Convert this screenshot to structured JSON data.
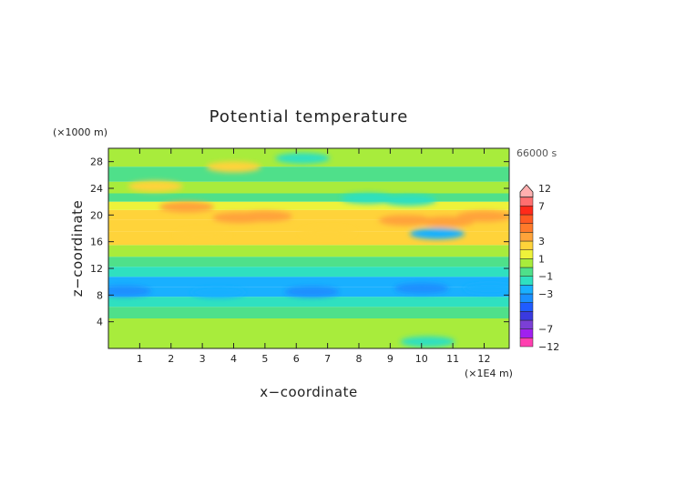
{
  "chart_data": {
    "type": "heatmap",
    "title": "Potential temperature",
    "xlabel": "x−coordinate",
    "ylabel": "z−coordinate",
    "x_unit": "(×1E4 m)",
    "y_unit": "(×1000 m)",
    "time_label": "66000 s",
    "xlim": [
      0,
      12.8
    ],
    "ylim": [
      0,
      30
    ],
    "x_ticks": [
      1,
      2,
      3,
      4,
      5,
      6,
      7,
      8,
      9,
      10,
      11,
      12
    ],
    "x_tick_labels": [
      "1",
      "2",
      "3",
      "4",
      "5",
      "6",
      "7",
      "8",
      "9",
      "10",
      "11",
      "12"
    ],
    "y_ticks": [
      4,
      8,
      12,
      16,
      20,
      24,
      28
    ],
    "y_tick_labels": [
      "4",
      "8",
      "12",
      "16",
      "20",
      "24",
      "28"
    ],
    "colorbar": {
      "bounds": [
        -12,
        -9,
        -7,
        -6,
        -5,
        -4,
        -3,
        -2,
        -1,
        0,
        1,
        2,
        3,
        4,
        5,
        6,
        7,
        9,
        12
      ],
      "colors": [
        "#ff3fb0",
        "#a020f0",
        "#7b3fd6",
        "#3a3ae0",
        "#1f5cff",
        "#1a8fff",
        "#19b0ff",
        "#2fe0c0",
        "#4fe08a",
        "#a8ec3c",
        "#eef23a",
        "#ffd33a",
        "#ffa33a",
        "#ff7a2a",
        "#ff5a22",
        "#ff2a1a",
        "#ff6f6f",
        "#ffb0b0"
      ],
      "labels": [
        "12",
        "7",
        "3",
        "1",
        "−1",
        "−3",
        "−7",
        "−12"
      ],
      "label_values": [
        12,
        7,
        3,
        1,
        -1,
        -3,
        -7,
        -12
      ]
    },
    "bands": [
      {
        "z_center": 1.0,
        "value": 0.4
      },
      {
        "z_center": 3.5,
        "value": 0.3
      },
      {
        "z_center": 5.5,
        "value": -0.8
      },
      {
        "z_center": 7.0,
        "value": -1.6
      },
      {
        "z_center": 8.5,
        "value": -2.6
      },
      {
        "z_center": 10.0,
        "value": -2.2
      },
      {
        "z_center": 11.5,
        "value": -1.5
      },
      {
        "z_center": 13.0,
        "value": -0.6
      },
      {
        "z_center": 14.5,
        "value": 0.5
      },
      {
        "z_center": 16.5,
        "value": 2.2
      },
      {
        "z_center": 18.5,
        "value": 2.4
      },
      {
        "z_center": 20.0,
        "value": 2.0
      },
      {
        "z_center": 21.5,
        "value": 1.2
      },
      {
        "z_center": 22.5,
        "value": -0.8
      },
      {
        "z_center": 24.0,
        "value": 0.3
      },
      {
        "z_center": 26.0,
        "value": -0.2
      },
      {
        "z_center": 28.5,
        "value": 0.2
      }
    ],
    "anomalies": [
      {
        "x": 1.5,
        "z": 24.3,
        "value": 2.4
      },
      {
        "x": 4.0,
        "z": 27.2,
        "value": 2.2
      },
      {
        "x": 2.5,
        "z": 21.2,
        "value": 3.3
      },
      {
        "x": 4.2,
        "z": 19.6,
        "value": 3.4
      },
      {
        "x": 5.0,
        "z": 19.8,
        "value": 3.2
      },
      {
        "x": 3.0,
        "z": 17.0,
        "value": 2.4
      },
      {
        "x": 7.0,
        "z": 17.4,
        "value": 2.6
      },
      {
        "x": 9.5,
        "z": 19.2,
        "value": 3.3
      },
      {
        "x": 10.8,
        "z": 19.0,
        "value": 3.6
      },
      {
        "x": 12.0,
        "z": 19.8,
        "value": 3.2
      },
      {
        "x": 8.3,
        "z": 22.5,
        "value": -1.6
      },
      {
        "x": 9.6,
        "z": 22.2,
        "value": -1.5
      },
      {
        "x": 10.5,
        "z": 17.2,
        "value": -2.4
      },
      {
        "x": 0.5,
        "z": 8.6,
        "value": -3.2
      },
      {
        "x": 3.5,
        "z": 8.4,
        "value": -3.0
      },
      {
        "x": 6.5,
        "z": 8.5,
        "value": -3.1
      },
      {
        "x": 10.0,
        "z": 9.0,
        "value": -3.3
      },
      {
        "x": 12.2,
        "z": 9.0,
        "value": -3.0
      },
      {
        "x": 6.2,
        "z": 28.5,
        "value": -1.3
      },
      {
        "x": 10.2,
        "z": 1.0,
        "value": -1.6
      }
    ]
  }
}
